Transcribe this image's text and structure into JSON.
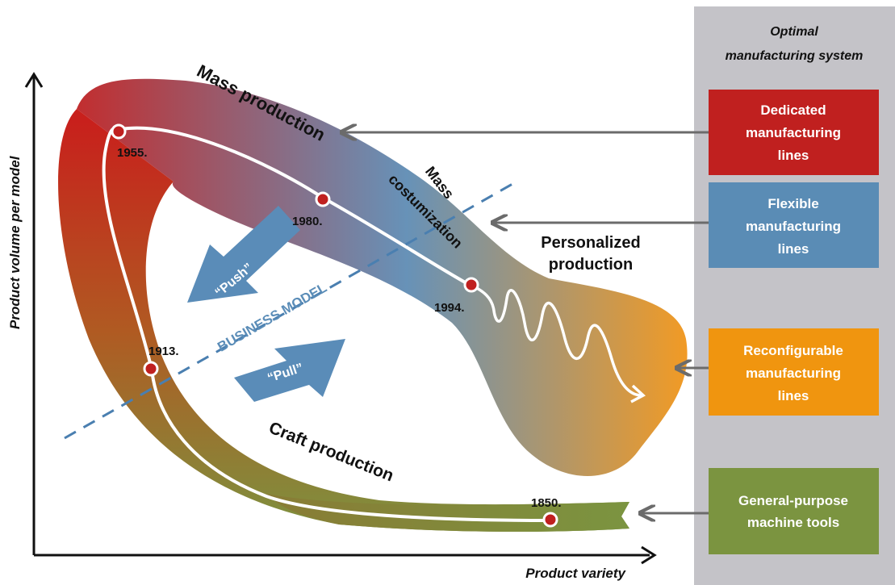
{
  "axes": {
    "y_label": "Product volume per model",
    "x_label": "Product variety"
  },
  "regions": {
    "mass_production": "Mass production",
    "mass_customization_line1": "Mass",
    "mass_customization_line2": "costumization",
    "personalized_line1": "Personalized",
    "personalized_line2": "production",
    "craft_production": "Craft production"
  },
  "years": [
    {
      "label": "1955.",
      "id": "1955"
    },
    {
      "label": "1980.",
      "id": "1980"
    },
    {
      "label": "1994.",
      "id": "1994"
    },
    {
      "label": "1913.",
      "id": "1913"
    },
    {
      "label": "1850.",
      "id": "1850"
    }
  ],
  "business_model": {
    "label": "BUSINESS MODEL",
    "push": "“Push”",
    "pull": "“Pull”"
  },
  "sidebar": {
    "heading_line1": "Optimal",
    "heading_line2": "manufacturing system",
    "boxes": [
      {
        "lines": [
          "Dedicated",
          "manufacturing",
          "lines"
        ],
        "color": "#c0201f"
      },
      {
        "lines": [
          "Flexible",
          "manufacturing",
          "lines"
        ],
        "color": "#5a8cb5"
      },
      {
        "lines": [
          "Reconfigurable",
          "manufacturing",
          "lines"
        ],
        "color": "#f0950f"
      },
      {
        "lines": [
          "General-purpose",
          "machine tools"
        ],
        "color": "#7b9440"
      }
    ]
  },
  "colors": {
    "sidebar_bg": "#c4c3c8",
    "point": "#c0201f",
    "arrow": "#6b6b6b",
    "dashed": "#4a7fb0",
    "push_pull": "#5a8cb8"
  }
}
